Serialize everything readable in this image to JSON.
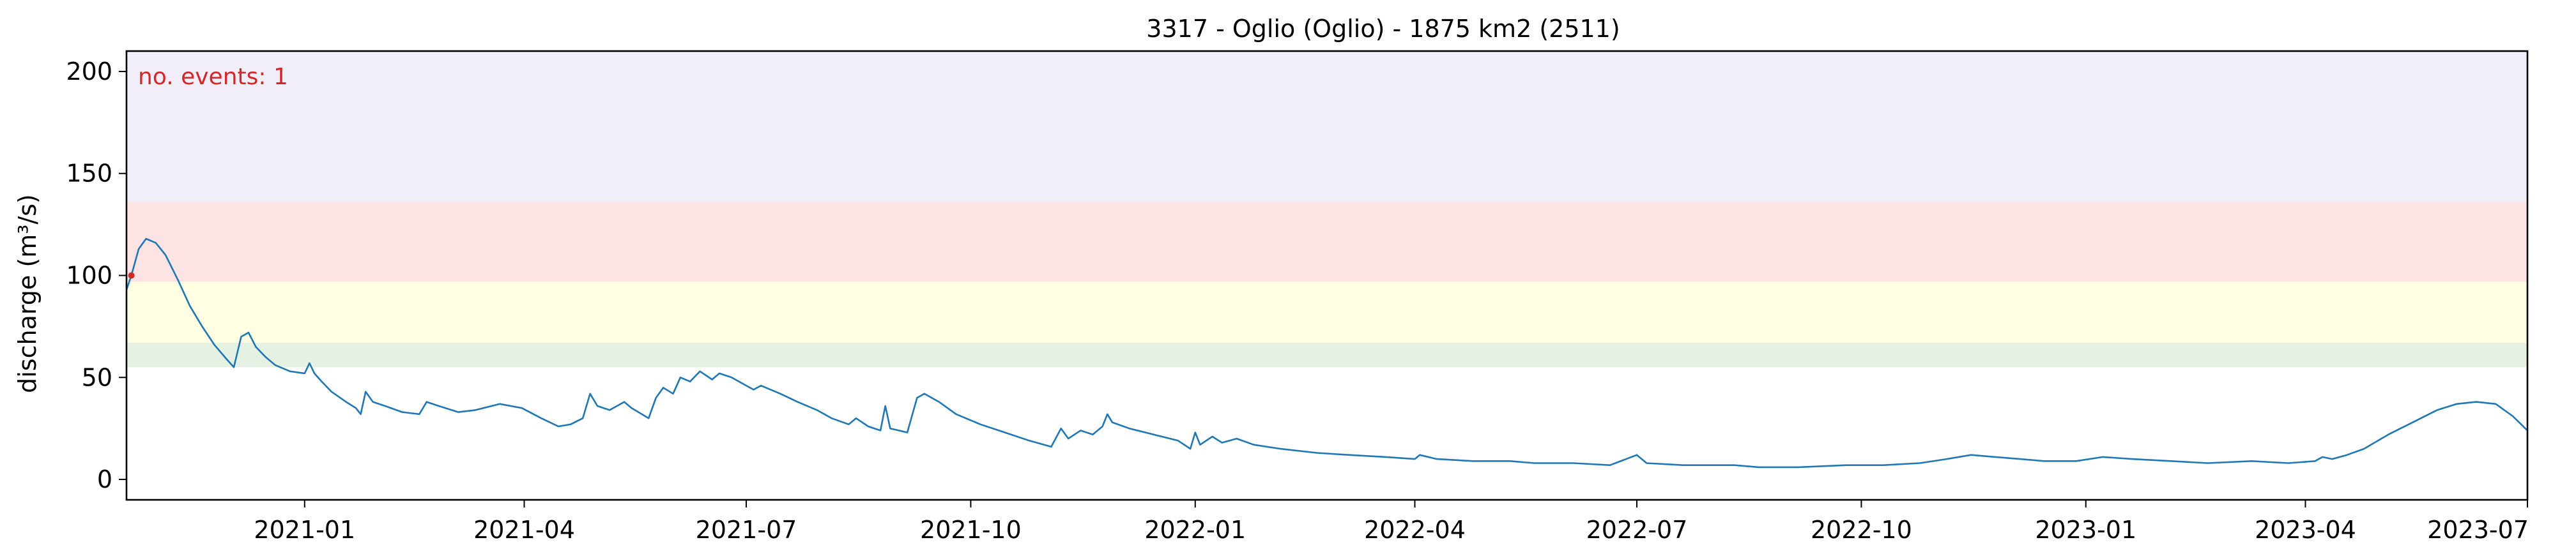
{
  "chart_data": {
    "type": "line",
    "title": "3317 - Oglio (Oglio) - 1875 km2 (2511)",
    "xlabel": "",
    "ylabel": "discharge (m³/s)",
    "xlim": [
      "2020-10-20",
      "2023-07-01"
    ],
    "ylim": [
      -10,
      210
    ],
    "yticks": [
      0,
      50,
      100,
      150,
      200
    ],
    "xticks": [
      "2021-01",
      "2021-04",
      "2021-07",
      "2021-10",
      "2022-01",
      "2022-04",
      "2022-07",
      "2022-10",
      "2023-01",
      "2023-04",
      "2023-07"
    ],
    "grid": false,
    "annotation": "no. events: 1",
    "threshold_bands": [
      {
        "from": 55,
        "to": 67,
        "color": "#e5f2e3"
      },
      {
        "from": 67,
        "to": 97,
        "color": "#fefee3"
      },
      {
        "from": 97,
        "to": 136,
        "color": "#fee3e5"
      },
      {
        "from": 136,
        "to": 210,
        "color": "#f1eefa"
      }
    ],
    "events": [
      {
        "x": "2020-10-22",
        "y": 100,
        "color": "#d62728"
      }
    ],
    "series": [
      {
        "color": "#1f77b4",
        "points": [
          [
            "2020-10-20",
            93
          ],
          [
            "2020-10-22",
            100
          ],
          [
            "2020-10-25",
            113
          ],
          [
            "2020-10-28",
            118
          ],
          [
            "2020-11-01",
            116
          ],
          [
            "2020-11-05",
            110
          ],
          [
            "2020-11-10",
            98
          ],
          [
            "2020-11-15",
            85
          ],
          [
            "2020-11-20",
            75
          ],
          [
            "2020-11-25",
            66
          ],
          [
            "2020-11-30",
            59
          ],
          [
            "2020-12-03",
            55
          ],
          [
            "2020-12-06",
            70
          ],
          [
            "2020-12-09",
            72
          ],
          [
            "2020-12-12",
            65
          ],
          [
            "2020-12-16",
            60
          ],
          [
            "2020-12-20",
            56
          ],
          [
            "2020-12-26",
            53
          ],
          [
            "2021-01-01",
            52
          ],
          [
            "2021-01-03",
            57
          ],
          [
            "2021-01-05",
            52
          ],
          [
            "2021-01-08",
            48
          ],
          [
            "2021-01-12",
            43
          ],
          [
            "2021-01-18",
            38
          ],
          [
            "2021-01-22",
            35
          ],
          [
            "2021-01-24",
            32
          ],
          [
            "2021-01-26",
            43
          ],
          [
            "2021-01-29",
            38
          ],
          [
            "2021-02-03",
            36
          ],
          [
            "2021-02-10",
            33
          ],
          [
            "2021-02-17",
            32
          ],
          [
            "2021-02-20",
            38
          ],
          [
            "2021-02-25",
            36
          ],
          [
            "2021-03-05",
            33
          ],
          [
            "2021-03-12",
            34
          ],
          [
            "2021-03-22",
            37
          ],
          [
            "2021-03-31",
            35
          ],
          [
            "2021-04-08",
            30
          ],
          [
            "2021-04-15",
            26
          ],
          [
            "2021-04-20",
            27
          ],
          [
            "2021-04-25",
            30
          ],
          [
            "2021-04-28",
            42
          ],
          [
            "2021-05-01",
            36
          ],
          [
            "2021-05-06",
            34
          ],
          [
            "2021-05-12",
            38
          ],
          [
            "2021-05-15",
            35
          ],
          [
            "2021-05-22",
            30
          ],
          [
            "2021-05-25",
            40
          ],
          [
            "2021-05-28",
            45
          ],
          [
            "2021-06-01",
            42
          ],
          [
            "2021-06-04",
            50
          ],
          [
            "2021-06-08",
            48
          ],
          [
            "2021-06-12",
            53
          ],
          [
            "2021-06-17",
            49
          ],
          [
            "2021-06-20",
            52
          ],
          [
            "2021-06-25",
            50
          ],
          [
            "2021-07-01",
            46
          ],
          [
            "2021-07-04",
            44
          ],
          [
            "2021-07-07",
            46
          ],
          [
            "2021-07-15",
            42
          ],
          [
            "2021-07-22",
            38
          ],
          [
            "2021-07-30",
            34
          ],
          [
            "2021-08-05",
            30
          ],
          [
            "2021-08-12",
            27
          ],
          [
            "2021-08-15",
            30
          ],
          [
            "2021-08-20",
            26
          ],
          [
            "2021-08-25",
            24
          ],
          [
            "2021-08-27",
            36
          ],
          [
            "2021-08-29",
            25
          ],
          [
            "2021-09-05",
            23
          ],
          [
            "2021-09-09",
            40
          ],
          [
            "2021-09-12",
            42
          ],
          [
            "2021-09-18",
            38
          ],
          [
            "2021-09-25",
            32
          ],
          [
            "2021-10-05",
            27
          ],
          [
            "2021-10-15",
            23
          ],
          [
            "2021-10-25",
            19
          ],
          [
            "2021-11-03",
            16
          ],
          [
            "2021-11-07",
            25
          ],
          [
            "2021-11-10",
            20
          ],
          [
            "2021-11-15",
            24
          ],
          [
            "2021-11-20",
            22
          ],
          [
            "2021-11-24",
            26
          ],
          [
            "2021-11-26",
            32
          ],
          [
            "2021-11-28",
            28
          ],
          [
            "2021-12-05",
            25
          ],
          [
            "2021-12-15",
            22
          ],
          [
            "2021-12-25",
            19
          ],
          [
            "2021-12-30",
            15
          ],
          [
            "2022-01-01",
            23
          ],
          [
            "2022-01-03",
            17
          ],
          [
            "2022-01-08",
            21
          ],
          [
            "2022-01-12",
            18
          ],
          [
            "2022-01-18",
            20
          ],
          [
            "2022-01-25",
            17
          ],
          [
            "2022-02-05",
            15
          ],
          [
            "2022-02-20",
            13
          ],
          [
            "2022-03-05",
            12
          ],
          [
            "2022-03-20",
            11
          ],
          [
            "2022-04-01",
            10
          ],
          [
            "2022-04-03",
            12
          ],
          [
            "2022-04-10",
            10
          ],
          [
            "2022-04-25",
            9
          ],
          [
            "2022-05-10",
            9
          ],
          [
            "2022-05-20",
            8
          ],
          [
            "2022-06-05",
            8
          ],
          [
            "2022-06-20",
            7
          ],
          [
            "2022-07-01",
            12
          ],
          [
            "2022-07-05",
            8
          ],
          [
            "2022-07-20",
            7
          ],
          [
            "2022-08-10",
            7
          ],
          [
            "2022-08-20",
            6
          ],
          [
            "2022-09-05",
            6
          ],
          [
            "2022-09-25",
            7
          ],
          [
            "2022-10-10",
            7
          ],
          [
            "2022-10-25",
            8
          ],
          [
            "2022-11-05",
            10
          ],
          [
            "2022-11-15",
            12
          ],
          [
            "2022-11-25",
            11
          ],
          [
            "2022-12-05",
            10
          ],
          [
            "2022-12-15",
            9
          ],
          [
            "2022-12-28",
            9
          ],
          [
            "2023-01-08",
            11
          ],
          [
            "2023-01-20",
            10
          ],
          [
            "2023-02-05",
            9
          ],
          [
            "2023-02-20",
            8
          ],
          [
            "2023-03-10",
            9
          ],
          [
            "2023-03-25",
            8
          ],
          [
            "2023-04-05",
            9
          ],
          [
            "2023-04-08",
            11
          ],
          [
            "2023-04-12",
            10
          ],
          [
            "2023-04-18",
            12
          ],
          [
            "2023-04-25",
            15
          ],
          [
            "2023-05-05",
            22
          ],
          [
            "2023-05-15",
            28
          ],
          [
            "2023-05-25",
            34
          ],
          [
            "2023-06-02",
            37
          ],
          [
            "2023-06-10",
            38
          ],
          [
            "2023-06-18",
            37
          ],
          [
            "2023-06-25",
            31
          ],
          [
            "2023-07-01",
            24
          ]
        ]
      }
    ]
  }
}
